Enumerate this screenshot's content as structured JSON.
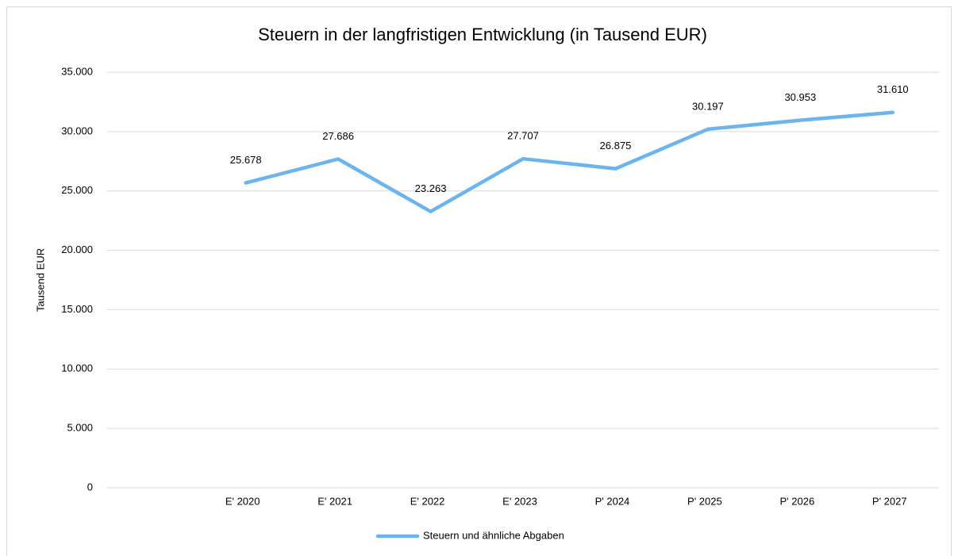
{
  "chart_data": {
    "type": "line",
    "title": "Steuern in der langfristigen Entwicklung  (in Tausend EUR)",
    "y_label": "Tausend EUR",
    "categories": [
      null,
      "E' 2020",
      "E' 2021",
      "E' 2022",
      "E' 2023",
      "P' 2024",
      "P' 2025",
      "P' 2026",
      "P' 2027"
    ],
    "series": [
      {
        "name": "Steuern und ähnliche Abgaben",
        "color": "#6cb4ee",
        "values": [
          null,
          25678,
          27686,
          23263,
          27707,
          26875,
          30197,
          30953,
          31610
        ],
        "value_labels": [
          null,
          "25.678",
          "27.686",
          "23.263",
          "27.707",
          "26.875",
          "30.197",
          "30.953",
          "31.610"
        ]
      }
    ],
    "ylim": [
      0,
      35000
    ],
    "yticks": [
      0,
      {
        "value": 5000,
        "label": "5.000"
      },
      {
        "value": 10000,
        "label": "10.000"
      },
      {
        "value": 15000,
        "label": "15.000"
      },
      {
        "value": 20000,
        "label": "20.000"
      },
      {
        "value": 25000,
        "label": "25.000"
      },
      {
        "value": 30000,
        "label": "30.000"
      },
      {
        "value": 35000,
        "label": "35.000"
      }
    ],
    "grid": true,
    "legend": "bottom"
  }
}
